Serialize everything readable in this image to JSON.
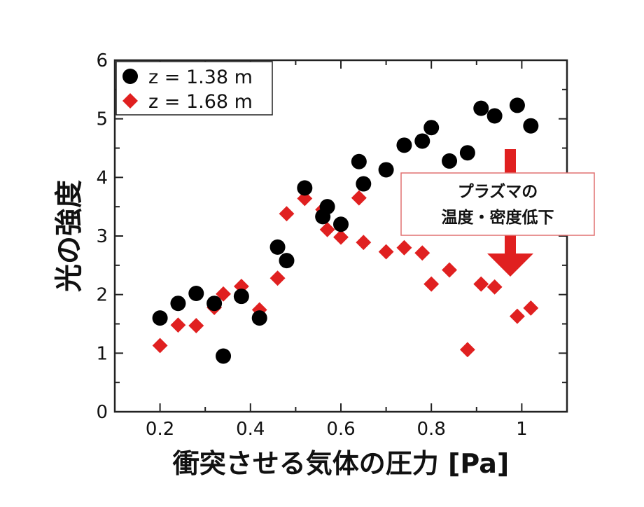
{
  "chart_data": {
    "type": "scatter",
    "xlabel": "衝突させる気体の圧力 [Pa]",
    "ylabel": "光の強度",
    "xlim": [
      0.1,
      1.1
    ],
    "ylim": [
      0,
      6
    ],
    "x_ticks": [
      "0.2",
      "0.4",
      "0.6",
      "0.8",
      "1"
    ],
    "x_tick_values": [
      0.2,
      0.4,
      0.6,
      0.8,
      1.0
    ],
    "y_ticks": [
      "0",
      "1",
      "2",
      "3",
      "4",
      "5",
      "6"
    ],
    "y_tick_values": [
      0,
      1,
      2,
      3,
      4,
      5,
      6
    ],
    "grid": false,
    "legend_position": "top-left",
    "series": [
      {
        "name": "z = 1.38 m",
        "marker": "circle",
        "color": "#000000",
        "points": [
          [
            0.2,
            1.6
          ],
          [
            0.24,
            1.85
          ],
          [
            0.28,
            2.02
          ],
          [
            0.32,
            1.85
          ],
          [
            0.34,
            0.95
          ],
          [
            0.38,
            1.97
          ],
          [
            0.42,
            1.6
          ],
          [
            0.46,
            2.81
          ],
          [
            0.48,
            2.58
          ],
          [
            0.52,
            3.82
          ],
          [
            0.56,
            3.33
          ],
          [
            0.57,
            3.5
          ],
          [
            0.6,
            3.2
          ],
          [
            0.64,
            4.27
          ],
          [
            0.65,
            3.89
          ],
          [
            0.7,
            4.13
          ],
          [
            0.74,
            4.55
          ],
          [
            0.78,
            4.62
          ],
          [
            0.8,
            4.85
          ],
          [
            0.84,
            4.28
          ],
          [
            0.88,
            4.42
          ],
          [
            0.91,
            5.18
          ],
          [
            0.94,
            5.05
          ],
          [
            0.99,
            5.23
          ],
          [
            1.02,
            4.88
          ]
        ]
      },
      {
        "name": "z = 1.68 m",
        "marker": "diamond",
        "color": "#e02020",
        "points": [
          [
            0.2,
            1.13
          ],
          [
            0.24,
            1.48
          ],
          [
            0.28,
            1.47
          ],
          [
            0.32,
            1.78
          ],
          [
            0.34,
            2.01
          ],
          [
            0.38,
            2.14
          ],
          [
            0.42,
            1.74
          ],
          [
            0.46,
            2.28
          ],
          [
            0.48,
            3.38
          ],
          [
            0.52,
            3.64
          ],
          [
            0.56,
            3.45
          ],
          [
            0.57,
            3.11
          ],
          [
            0.6,
            2.98
          ],
          [
            0.64,
            3.65
          ],
          [
            0.65,
            2.89
          ],
          [
            0.7,
            2.73
          ],
          [
            0.74,
            2.8
          ],
          [
            0.78,
            2.71
          ],
          [
            0.8,
            2.18
          ],
          [
            0.84,
            2.42
          ],
          [
            0.88,
            1.06
          ],
          [
            0.91,
            2.18
          ],
          [
            0.94,
            2.13
          ],
          [
            0.99,
            1.63
          ],
          [
            1.02,
            1.77
          ]
        ]
      }
    ],
    "annotation": {
      "lines": [
        "プラズマの",
        "温度・密度低下"
      ],
      "arrow_color": "#e02020"
    }
  }
}
